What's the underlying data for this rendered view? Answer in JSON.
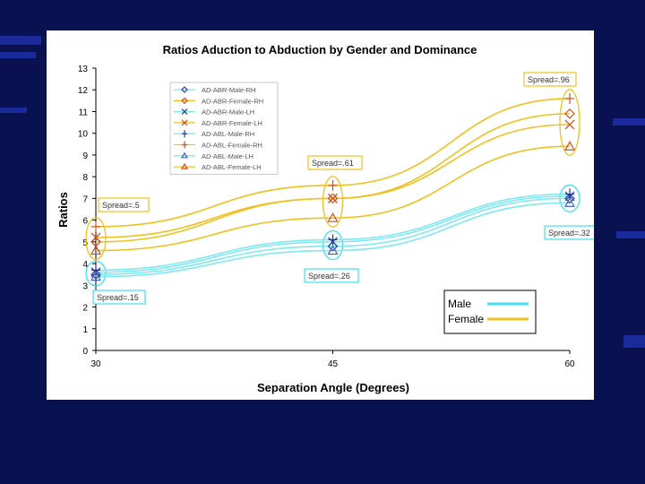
{
  "chart_data": {
    "type": "line",
    "title": "Ratios Aduction to Abduction by Gender and Dominance",
    "xlabel": "Separation Angle (Degrees)",
    "ylabel": "Ratios",
    "x": [
      30,
      45,
      60
    ],
    "xticks": [
      "30",
      "45",
      "60"
    ],
    "ylim": [
      0,
      13
    ],
    "yticks": [
      "0",
      "1",
      "2",
      "3",
      "4",
      "5",
      "6",
      "7",
      "8",
      "9",
      "10",
      "11",
      "12",
      "13"
    ],
    "grid": false,
    "legend_position": "top-left",
    "series": [
      {
        "name": "AD-ABR-Male-RH",
        "values": [
          3.5,
          4.8,
          7.0
        ],
        "color": "#80e8f0",
        "marker_color": "#3040a0",
        "marker": "diamond"
      },
      {
        "name": "AD-ABR-Female-RH",
        "values": [
          5.0,
          7.0,
          10.9
        ],
        "color": "#f0c020",
        "marker_color": "#d05020",
        "marker": "diamond"
      },
      {
        "name": "AD-ABR-Male-LH",
        "values": [
          3.6,
          5.0,
          7.1
        ],
        "color": "#80e8f0",
        "marker_color": "#3040a0",
        "marker": "x"
      },
      {
        "name": "AD-ABR-Female-LH",
        "values": [
          5.2,
          7.0,
          10.4
        ],
        "color": "#f0c020",
        "marker_color": "#d05020",
        "marker": "x"
      },
      {
        "name": "AD-ABL-Male-RH",
        "values": [
          3.7,
          5.1,
          7.2
        ],
        "color": "#80e8f0",
        "marker_color": "#2030a0",
        "marker": "plus"
      },
      {
        "name": "AD-ABL-Female-RH",
        "values": [
          5.7,
          7.6,
          11.6
        ],
        "color": "#f0c020",
        "marker_color": "#d05020",
        "marker": "plus"
      },
      {
        "name": "AD-ABL-Male-LH",
        "values": [
          3.4,
          4.6,
          6.8
        ],
        "color": "#80e8f0",
        "marker_color": "#4060c0",
        "marker": "triangle"
      },
      {
        "name": "AD-ABL-Female-LH",
        "values": [
          4.6,
          6.1,
          9.4
        ],
        "color": "#f0c020",
        "marker_color": "#d05020",
        "marker": "triangle"
      }
    ],
    "group_legend": [
      {
        "label": "Male",
        "color": "#40e0f0"
      },
      {
        "label": "Female",
        "color": "#f0c020"
      }
    ],
    "annotations": [
      {
        "text": "Spread=.5",
        "group": "female",
        "x": 30,
        "color": "#f0c020"
      },
      {
        "text": "Spread=.61",
        "group": "female",
        "x": 45,
        "color": "#f0c020"
      },
      {
        "text": "Spread=.96",
        "group": "female",
        "x": 60,
        "color": "#f0c020"
      },
      {
        "text": "Spread=.15",
        "group": "male",
        "x": 30,
        "color": "#40e0f0"
      },
      {
        "text": "Spread=.26",
        "group": "male",
        "x": 45,
        "color": "#40e0f0"
      },
      {
        "text": "Spread=.32",
        "group": "male",
        "x": 60,
        "color": "#40e0f0"
      }
    ]
  }
}
